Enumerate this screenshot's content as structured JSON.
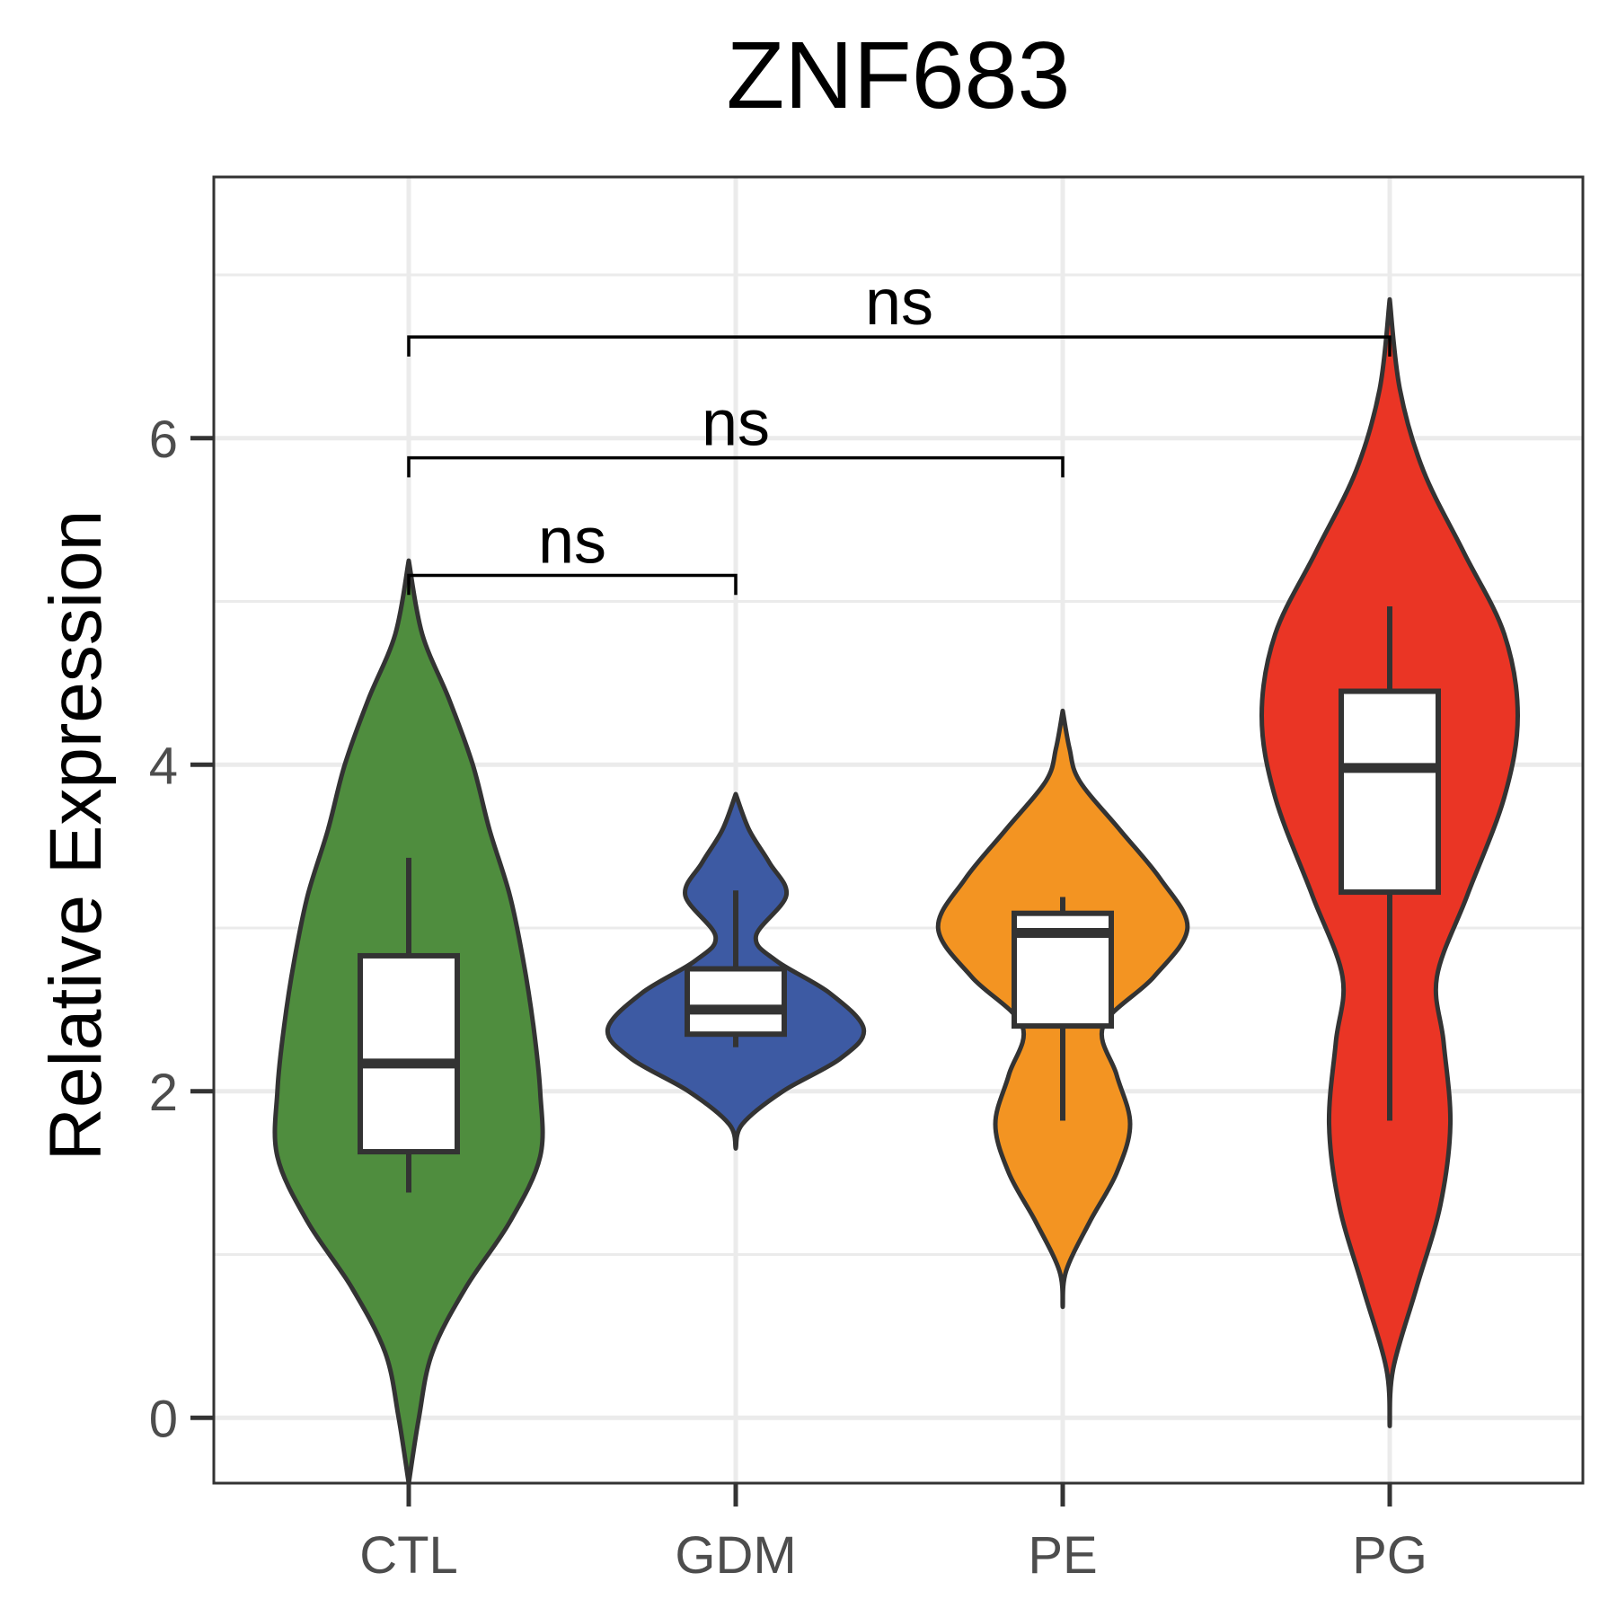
{
  "chart_data": {
    "type": "violin",
    "title": "ZNF683",
    "ylabel": "Relative Expression",
    "xlabel": "",
    "ylim": [
      -0.4,
      7.6
    ],
    "y_ticks": [
      0,
      2,
      4,
      6
    ],
    "y_tick_labels": [
      "0",
      "2",
      "4",
      "6"
    ],
    "y_minor_ticks": [
      1,
      3,
      5,
      7
    ],
    "grid": true,
    "categories": [
      "CTL",
      "GDM",
      "PE",
      "PG"
    ],
    "colors": {
      "CTL": "#4f8d3e",
      "GDM": "#3d5aa3",
      "PE": "#f39422",
      "PG": "#ea3525"
    },
    "violins": [
      {
        "group": "CTL",
        "min": -0.4,
        "max": 5.25,
        "density": [
          [
            -0.4,
            0.0
          ],
          [
            0.0,
            0.03
          ],
          [
            0.4,
            0.07
          ],
          [
            0.8,
            0.17
          ],
          [
            1.2,
            0.3
          ],
          [
            1.6,
            0.39
          ],
          [
            2.0,
            0.39
          ],
          [
            2.4,
            0.37
          ],
          [
            2.8,
            0.34
          ],
          [
            3.2,
            0.3
          ],
          [
            3.6,
            0.24
          ],
          [
            4.0,
            0.19
          ],
          [
            4.4,
            0.12
          ],
          [
            4.8,
            0.04
          ],
          [
            5.25,
            0.0
          ]
        ],
        "box": {
          "whisker_low": 1.38,
          "q1": 1.63,
          "median": 2.17,
          "q3": 2.83,
          "whisker_high": 3.43
        }
      },
      {
        "group": "GDM",
        "min": 1.65,
        "max": 3.82,
        "density": [
          [
            1.65,
            0.0
          ],
          [
            1.8,
            0.02
          ],
          [
            2.0,
            0.14
          ],
          [
            2.2,
            0.31
          ],
          [
            2.38,
            0.38
          ],
          [
            2.6,
            0.28
          ],
          [
            2.8,
            0.12
          ],
          [
            2.95,
            0.06
          ],
          [
            3.2,
            0.15
          ],
          [
            3.4,
            0.1
          ],
          [
            3.6,
            0.04
          ],
          [
            3.82,
            0.0
          ]
        ],
        "box": {
          "whisker_low": 2.27,
          "q1": 2.35,
          "median": 2.5,
          "q3": 2.75,
          "whisker_high": 3.23
        }
      },
      {
        "group": "PE",
        "min": 0.68,
        "max": 4.33,
        "density": [
          [
            0.68,
            0.0
          ],
          [
            0.9,
            0.01
          ],
          [
            1.2,
            0.08
          ],
          [
            1.5,
            0.16
          ],
          [
            1.8,
            0.2
          ],
          [
            2.1,
            0.16
          ],
          [
            2.4,
            0.12
          ],
          [
            2.7,
            0.27
          ],
          [
            3.0,
            0.37
          ],
          [
            3.3,
            0.29
          ],
          [
            3.6,
            0.17
          ],
          [
            3.9,
            0.05
          ],
          [
            4.1,
            0.02
          ],
          [
            4.33,
            0.0
          ]
        ],
        "box": {
          "whisker_low": 1.82,
          "q1": 2.4,
          "median": 2.97,
          "q3": 3.09,
          "whisker_high": 3.19
        }
      },
      {
        "group": "PG",
        "min": -0.05,
        "max": 6.85,
        "density": [
          [
            -0.05,
            0.0
          ],
          [
            0.3,
            0.01
          ],
          [
            0.8,
            0.08
          ],
          [
            1.3,
            0.15
          ],
          [
            1.8,
            0.18
          ],
          [
            2.3,
            0.16
          ],
          [
            2.7,
            0.14
          ],
          [
            3.2,
            0.23
          ],
          [
            3.8,
            0.34
          ],
          [
            4.3,
            0.38
          ],
          [
            4.8,
            0.34
          ],
          [
            5.3,
            0.22
          ],
          [
            5.8,
            0.1
          ],
          [
            6.3,
            0.03
          ],
          [
            6.85,
            0.0
          ]
        ],
        "box": {
          "whisker_low": 1.82,
          "q1": 3.22,
          "median": 3.98,
          "q3": 4.45,
          "whisker_high": 4.97
        }
      }
    ],
    "comparisons": [
      {
        "from": "CTL",
        "to": "GDM",
        "label": "ns",
        "y": 5.16,
        "tip": 0.12
      },
      {
        "from": "CTL",
        "to": "PE",
        "label": "ns",
        "y": 5.88,
        "tip": 0.12
      },
      {
        "from": "CTL",
        "to": "PG",
        "label": "ns",
        "y": 6.62,
        "tip": 0.12
      }
    ]
  }
}
